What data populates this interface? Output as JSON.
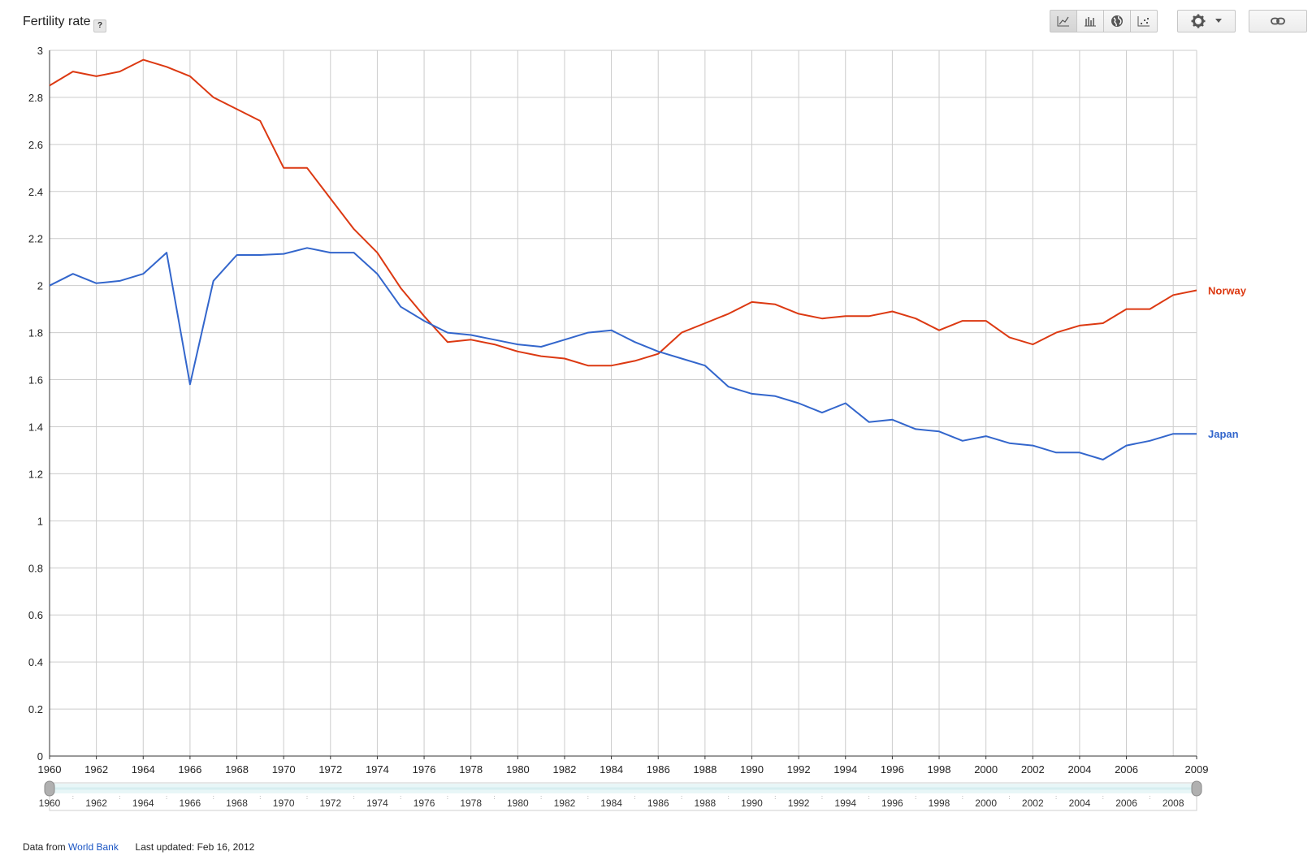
{
  "header": {
    "title": "Fertility rate",
    "help_label": "?"
  },
  "toolbar": {
    "icons": [
      "line-chart-icon",
      "bar-chart-icon",
      "globe-icon",
      "scatter-icon"
    ],
    "settings_icon": "gear-icon",
    "link_icon": "link-icon"
  },
  "footer": {
    "source_prefix": "Data from",
    "source_link": "World Bank",
    "last_updated": "Last updated: Feb 16, 2012"
  },
  "chart_data": {
    "type": "line",
    "title": "Fertility rate",
    "xlabel": "",
    "ylabel": "",
    "xlim": [
      1960,
      2009
    ],
    "ylim": [
      0,
      3
    ],
    "grid": true,
    "legend": "right-end-labels",
    "x": [
      1960,
      1961,
      1962,
      1963,
      1964,
      1965,
      1966,
      1967,
      1968,
      1969,
      1970,
      1971,
      1972,
      1973,
      1974,
      1975,
      1976,
      1977,
      1978,
      1979,
      1980,
      1981,
      1982,
      1983,
      1984,
      1985,
      1986,
      1987,
      1988,
      1989,
      1990,
      1991,
      1992,
      1993,
      1994,
      1995,
      1996,
      1997,
      1998,
      1999,
      2000,
      2001,
      2002,
      2003,
      2004,
      2005,
      2006,
      2007,
      2008,
      2009
    ],
    "y_ticks": [
      "0",
      "0.2",
      "0.4",
      "0.6",
      "0.8",
      "1",
      "1.2",
      "1.4",
      "1.6",
      "1.8",
      "2",
      "2.2",
      "2.4",
      "2.6",
      "2.8",
      "3"
    ],
    "x_ticks": [
      "1960",
      "1962",
      "1964",
      "1966",
      "1968",
      "1970",
      "1972",
      "1974",
      "1976",
      "1978",
      "1980",
      "1982",
      "1984",
      "1986",
      "1988",
      "1990",
      "1992",
      "1994",
      "1996",
      "1998",
      "2000",
      "2002",
      "2004",
      "2006",
      "2009"
    ],
    "timeline_ticks": [
      "1960",
      "1962",
      "1964",
      "1966",
      "1968",
      "1970",
      "1972",
      "1974",
      "1976",
      "1978",
      "1980",
      "1982",
      "1984",
      "1986",
      "1988",
      "1990",
      "1992",
      "1994",
      "1996",
      "1998",
      "2000",
      "2002",
      "2004",
      "2006",
      "2008"
    ],
    "series": [
      {
        "name": "Norway",
        "color": "#dc3912",
        "values": [
          2.85,
          2.91,
          2.89,
          2.91,
          2.96,
          2.93,
          2.89,
          2.8,
          2.75,
          2.7,
          2.5,
          2.5,
          2.37,
          2.24,
          2.14,
          1.99,
          1.87,
          1.76,
          1.77,
          1.75,
          1.72,
          1.7,
          1.69,
          1.66,
          1.66,
          1.68,
          1.71,
          1.8,
          1.84,
          1.88,
          1.93,
          1.92,
          1.88,
          1.86,
          1.87,
          1.87,
          1.89,
          1.86,
          1.81,
          1.85,
          1.85,
          1.78,
          1.75,
          1.8,
          1.83,
          1.84,
          1.9,
          1.9,
          1.96,
          1.98
        ]
      },
      {
        "name": "Japan",
        "color": "#3366cc",
        "values": [
          2.0,
          2.05,
          2.01,
          2.02,
          2.05,
          2.14,
          1.58,
          2.02,
          2.13,
          2.13,
          2.135,
          2.16,
          2.14,
          2.14,
          2.05,
          1.91,
          1.85,
          1.8,
          1.79,
          1.77,
          1.75,
          1.74,
          1.77,
          1.8,
          1.81,
          1.76,
          1.72,
          1.69,
          1.66,
          1.57,
          1.54,
          1.53,
          1.5,
          1.46,
          1.5,
          1.42,
          1.43,
          1.39,
          1.38,
          1.34,
          1.36,
          1.33,
          1.32,
          1.29,
          1.29,
          1.26,
          1.32,
          1.34,
          1.37,
          1.37
        ]
      }
    ]
  }
}
